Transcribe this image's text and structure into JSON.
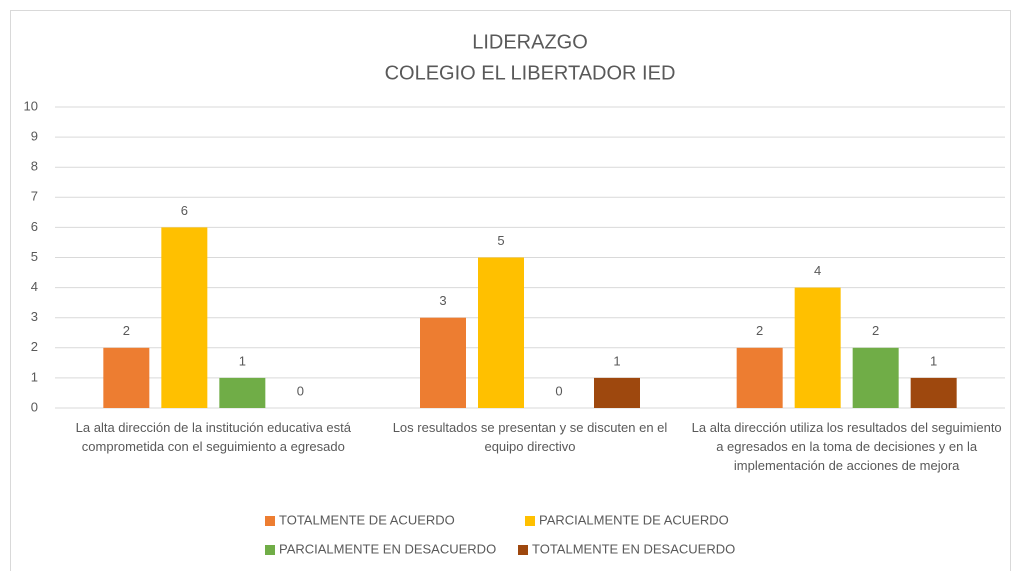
{
  "chart_data": {
    "type": "bar",
    "title": "LIDERAZGO",
    "subtitle": "COLEGIO EL LIBERTADOR IED",
    "categories": [
      "La alta dirección de la institución educativa está comprometida con el seguimiento a egresado",
      "Los resultados se presentan y se discuten en el equipo directivo",
      "La alta dirección utiliza los resultados del seguimiento a egresados en la toma de decisiones y en la implementación de acciones de mejora"
    ],
    "series": [
      {
        "name": "TOTALMENTE DE ACUERDO",
        "color": "#ED7D31",
        "values": [
          2,
          3,
          2
        ]
      },
      {
        "name": "PARCIALMENTE DE ACUERDO",
        "color": "#FFC000",
        "values": [
          6,
          5,
          4
        ]
      },
      {
        "name": "PARCIALMENTE EN DESACUERDO",
        "color": "#70AD47",
        "values": [
          1,
          0,
          2
        ]
      },
      {
        "name": "TOTALMENTE EN DESACUERDO",
        "color": "#9E480E",
        "values": [
          0,
          1,
          1
        ]
      }
    ],
    "ylim": [
      0,
      10
    ],
    "yticks": [
      0,
      1,
      2,
      3,
      4,
      5,
      6,
      7,
      8,
      9,
      10
    ],
    "grid": true,
    "legend": "bottom"
  }
}
